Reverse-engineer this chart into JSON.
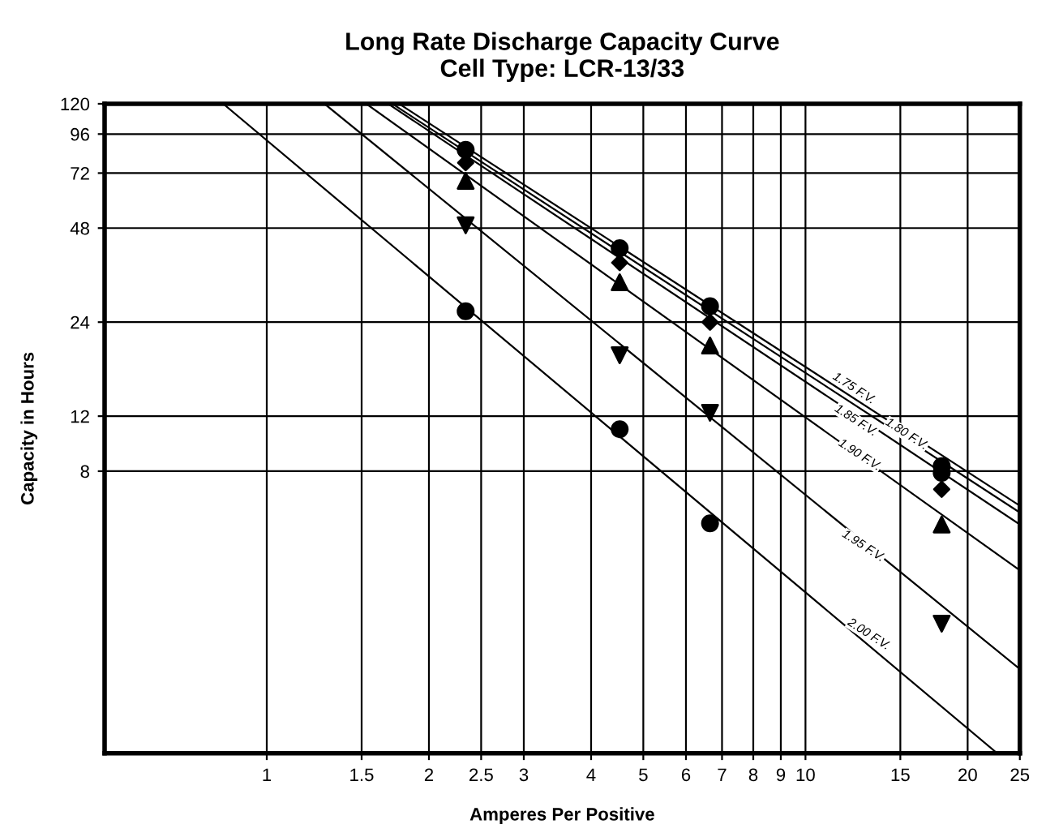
{
  "chart_data": {
    "type": "scatter",
    "title": "Long Rate Discharge Capacity Curve\nCell Type: LCR-13/33",
    "xlabel": "Amperes Per Positive",
    "ylabel": "Capacity in Hours",
    "log": "xy",
    "grid": true,
    "legend": false,
    "xlim": [
      0.5,
      25
    ],
    "xticks": [
      1,
      1.5,
      2,
      2.5,
      3,
      4,
      5,
      6,
      7,
      8,
      9,
      10,
      15,
      20,
      25
    ],
    "ylim": [
      1,
      120
    ],
    "yticks": [
      8,
      12,
      24,
      48,
      72,
      96,
      120
    ],
    "series": [
      {
        "type": "line",
        "color": "#000000",
        "marker": "none",
        "x": [
          1.76,
          25
        ],
        "values": [
          120,
          6.2
        ]
      },
      {
        "type": "line",
        "color": "#000000",
        "marker": "none",
        "x": [
          1.71,
          25
        ],
        "values": [
          120,
          5.9
        ]
      },
      {
        "type": "line",
        "color": "#000000",
        "marker": "none",
        "x": [
          1.68,
          25
        ],
        "values": [
          120,
          5.4
        ]
      },
      {
        "type": "line",
        "color": "#000000",
        "marker": "none",
        "x": [
          1.53,
          25
        ],
        "values": [
          120,
          3.85
        ]
      },
      {
        "type": "line",
        "color": "#000000",
        "marker": "none",
        "x": [
          1.28,
          25
        ],
        "values": [
          120,
          1.86
        ]
      },
      {
        "type": "line",
        "color": "#000000",
        "marker": "none",
        "x": [
          0.83,
          22.7
        ],
        "values": [
          120,
          1
        ]
      },
      {
        "color": "#000000",
        "marker": "circle",
        "x": [
          2.34,
          4.52,
          6.65,
          17.9,
          17.9
        ],
        "values": [
          85.5,
          41.4,
          27,
          8.3,
          7.9
        ]
      },
      {
        "color": "#000000",
        "marker": "diamond",
        "x": [
          2.34,
          4.52,
          6.65,
          17.9
        ],
        "values": [
          77.7,
          37.2,
          24,
          7.0
        ]
      },
      {
        "color": "#000000",
        "marker": "triangle",
        "x": [
          2.34,
          4.52,
          6.65,
          17.9
        ],
        "values": [
          68,
          32.2,
          20.2,
          5.4
        ]
      },
      {
        "color": "#000000",
        "marker": "triangle_down",
        "x": [
          2.34,
          4.52,
          6.65,
          17.9
        ],
        "values": [
          49,
          18.8,
          12.3,
          2.6
        ]
      },
      {
        "color": "#000000",
        "marker": "circle",
        "x": [
          2.34,
          4.52,
          6.65
        ],
        "values": [
          26,
          10.9,
          5.45
        ]
      }
    ],
    "annotations": [
      {
        "text": "1.75 F.V.",
        "x": 12.3,
        "y": 14.7
      },
      {
        "text": "1.80 F.V.",
        "x": 15.4,
        "y": 10.5
      },
      {
        "text": "1.85 F.V.",
        "x": 12.4,
        "y": 11.6
      },
      {
        "text": "1.90 F.V.",
        "x": 12.6,
        "y": 9.0
      },
      {
        "text": "1.95 F.V.",
        "x": 12.8,
        "y": 4.6
      },
      {
        "text": "2.00 F.V.",
        "x": 13.1,
        "y": 2.4
      }
    ]
  }
}
